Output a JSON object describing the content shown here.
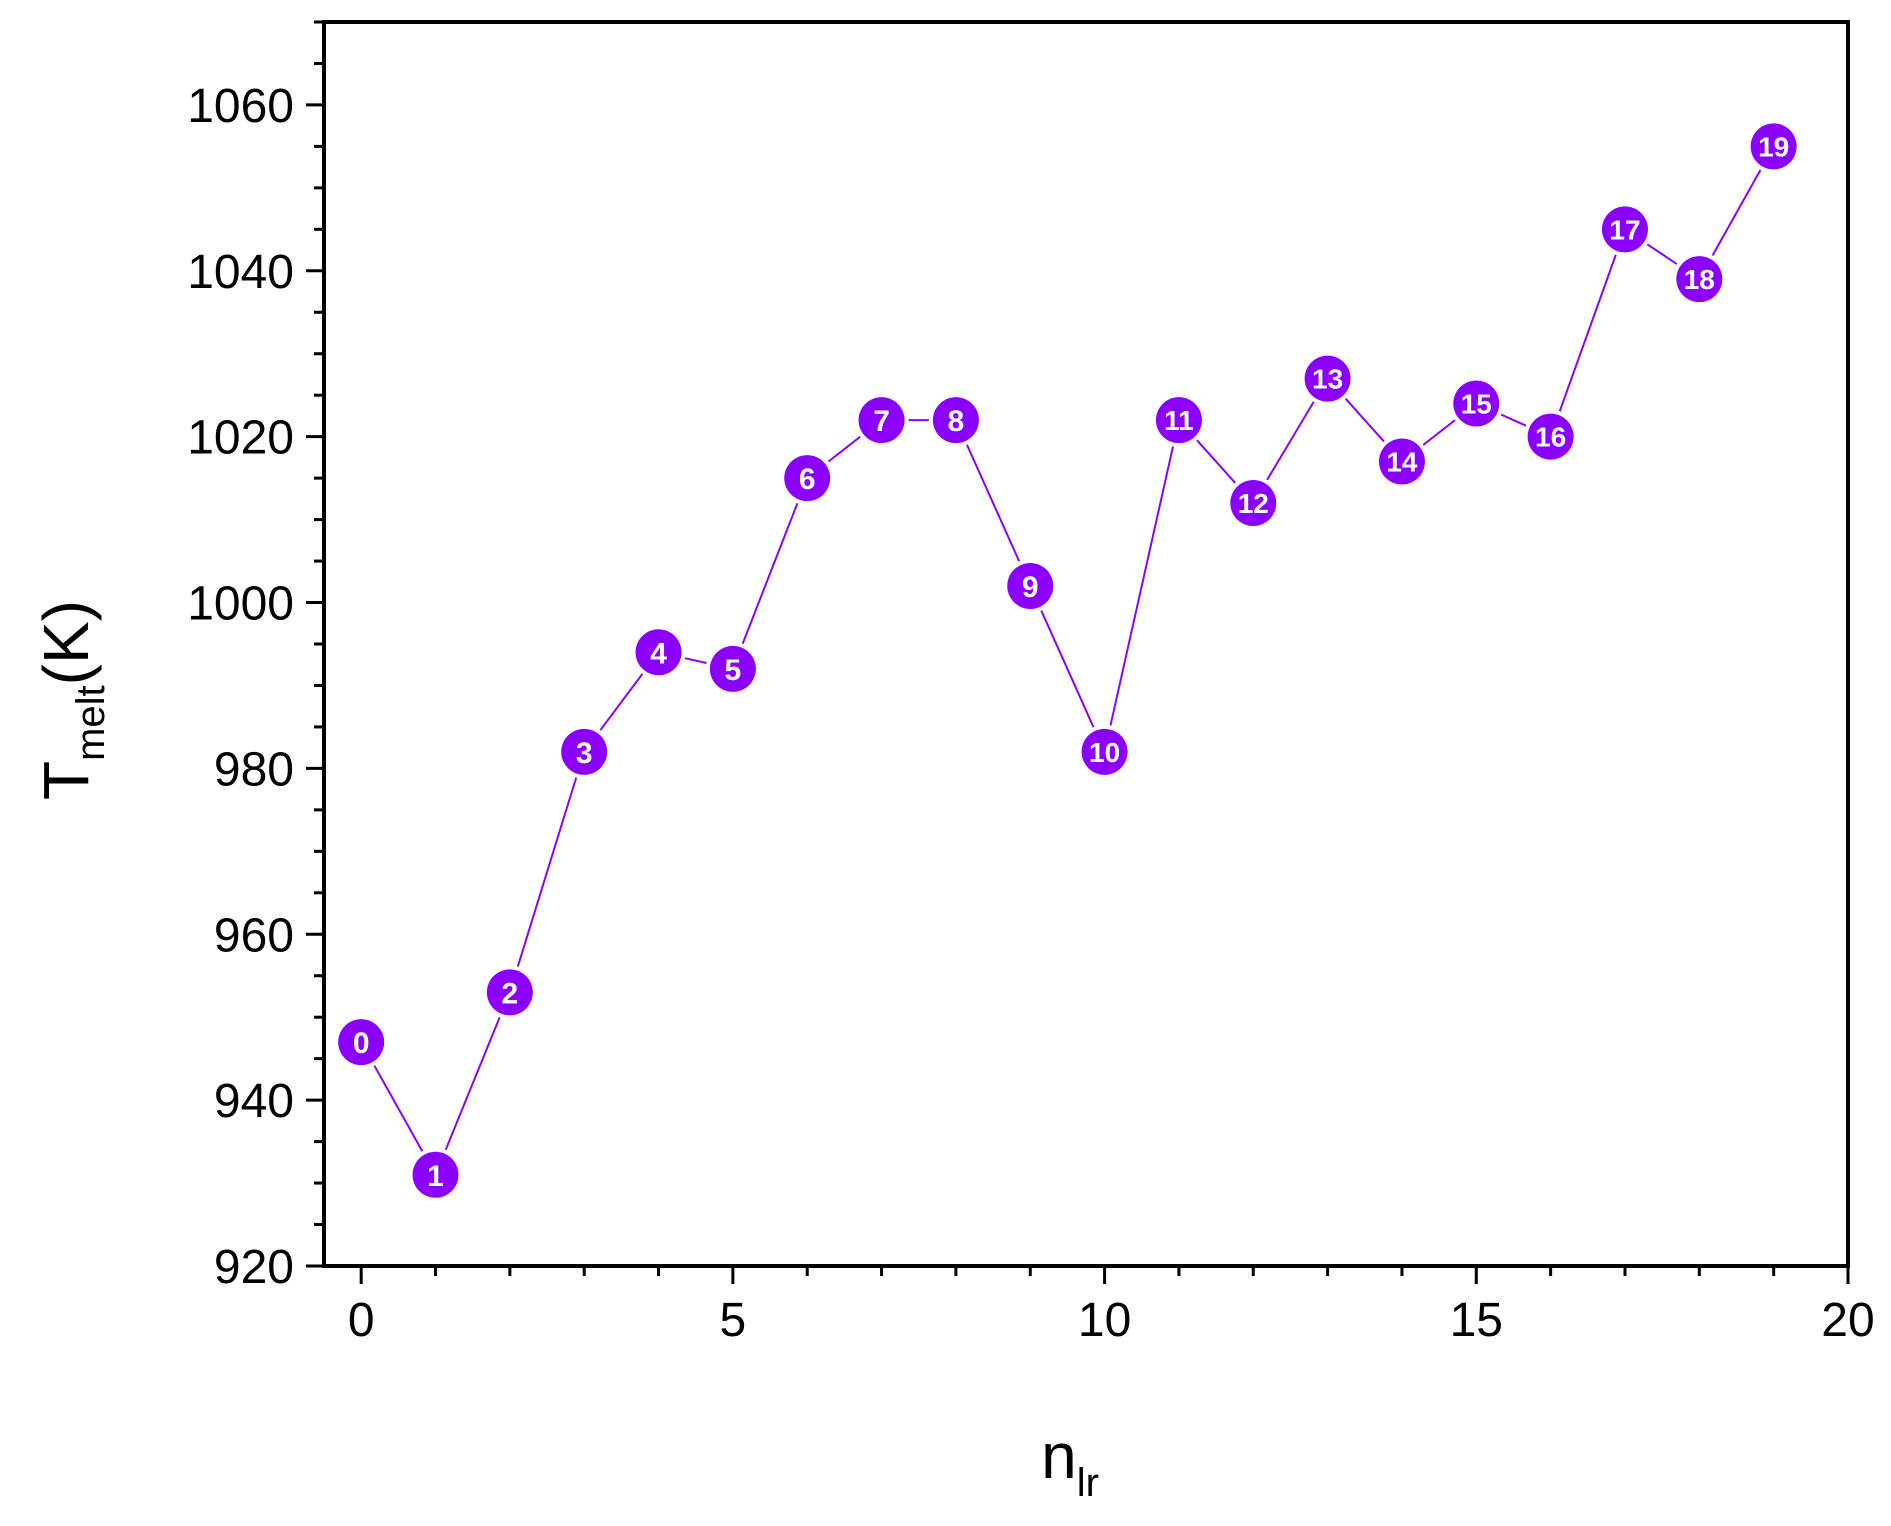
{
  "chart_data": {
    "type": "line",
    "title": "",
    "xlabel": {
      "main": "n",
      "sub": "lr"
    },
    "ylabel": {
      "main": "T",
      "sub": "melt",
      "suffix": "(K)"
    },
    "xlim": [
      -0.5,
      20
    ],
    "ylim": [
      920,
      1070
    ],
    "xticks": [
      0,
      5,
      10,
      15,
      20
    ],
    "xtick_labels": [
      "0",
      "5",
      "10",
      "15",
      "20"
    ],
    "yticks": [
      920,
      940,
      960,
      980,
      1000,
      1020,
      1040,
      1060
    ],
    "ytick_labels": [
      "920",
      "940",
      "960",
      "980",
      "1000",
      "1020",
      "1040",
      "1060"
    ],
    "grid": false,
    "legend": "none",
    "series": [
      {
        "color": "#8b00ff",
        "marker": "numbered-circle",
        "points": [
          {
            "x": 0,
            "y": 947,
            "label": "0"
          },
          {
            "x": 1,
            "y": 931,
            "label": "1"
          },
          {
            "x": 2,
            "y": 953,
            "label": "2"
          },
          {
            "x": 3,
            "y": 982,
            "label": "3"
          },
          {
            "x": 4,
            "y": 994,
            "label": "4"
          },
          {
            "x": 5,
            "y": 992,
            "label": "5"
          },
          {
            "x": 6,
            "y": 1015,
            "label": "6"
          },
          {
            "x": 7,
            "y": 1022,
            "label": "7"
          },
          {
            "x": 8,
            "y": 1022,
            "label": "8"
          },
          {
            "x": 9,
            "y": 1002,
            "label": "9"
          },
          {
            "x": 10,
            "y": 982,
            "label": "10"
          },
          {
            "x": 11,
            "y": 1022,
            "label": "11"
          },
          {
            "x": 12,
            "y": 1012,
            "label": "12"
          },
          {
            "x": 13,
            "y": 1027,
            "label": "13"
          },
          {
            "x": 14,
            "y": 1017,
            "label": "14"
          },
          {
            "x": 15,
            "y": 1024,
            "label": "15"
          },
          {
            "x": 16,
            "y": 1020,
            "label": "16"
          },
          {
            "x": 17,
            "y": 1045,
            "label": "17"
          },
          {
            "x": 18,
            "y": 1039,
            "label": "18"
          },
          {
            "x": 19,
            "y": 1055,
            "label": "19"
          }
        ]
      }
    ]
  }
}
